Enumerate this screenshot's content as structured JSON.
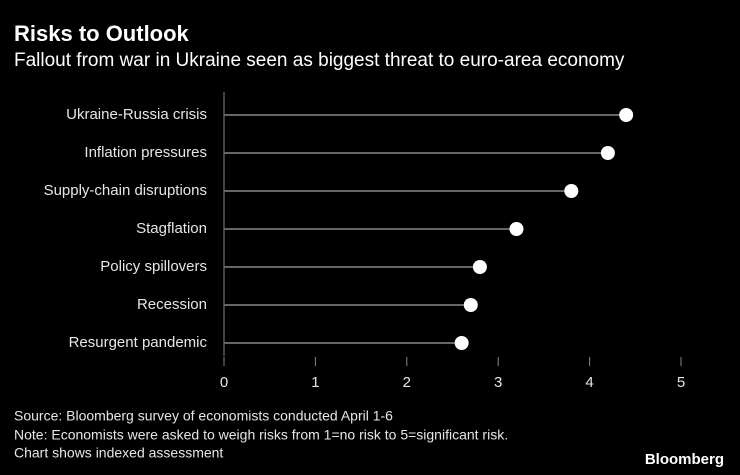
{
  "chart_data": {
    "type": "lollipop",
    "orientation": "horizontal",
    "title": "Risks to Outlook",
    "subtitle": "Fallout from war in Ukraine seen as biggest threat to euro-area economy",
    "categories": [
      "Ukraine-Russia crisis",
      "Inflation pressures",
      "Supply-chain disruptions",
      "Stagflation",
      "Policy spillovers",
      "Recession",
      "Resurgent pandemic"
    ],
    "values": [
      4.4,
      4.2,
      3.8,
      3.2,
      2.8,
      2.7,
      2.6
    ],
    "color": "#ffffff",
    "stem_color": "#666666",
    "xlim": [
      0,
      5
    ],
    "xticks": [
      0,
      1,
      2,
      3,
      4,
      5
    ],
    "source": "Source: Bloomberg survey of economists conducted April 1-6",
    "notes": [
      "Note: Economists were asked to weigh risks from 1=no risk to 5=significant risk.",
      "Chart shows indexed assessment"
    ],
    "brand": "Bloomberg"
  }
}
